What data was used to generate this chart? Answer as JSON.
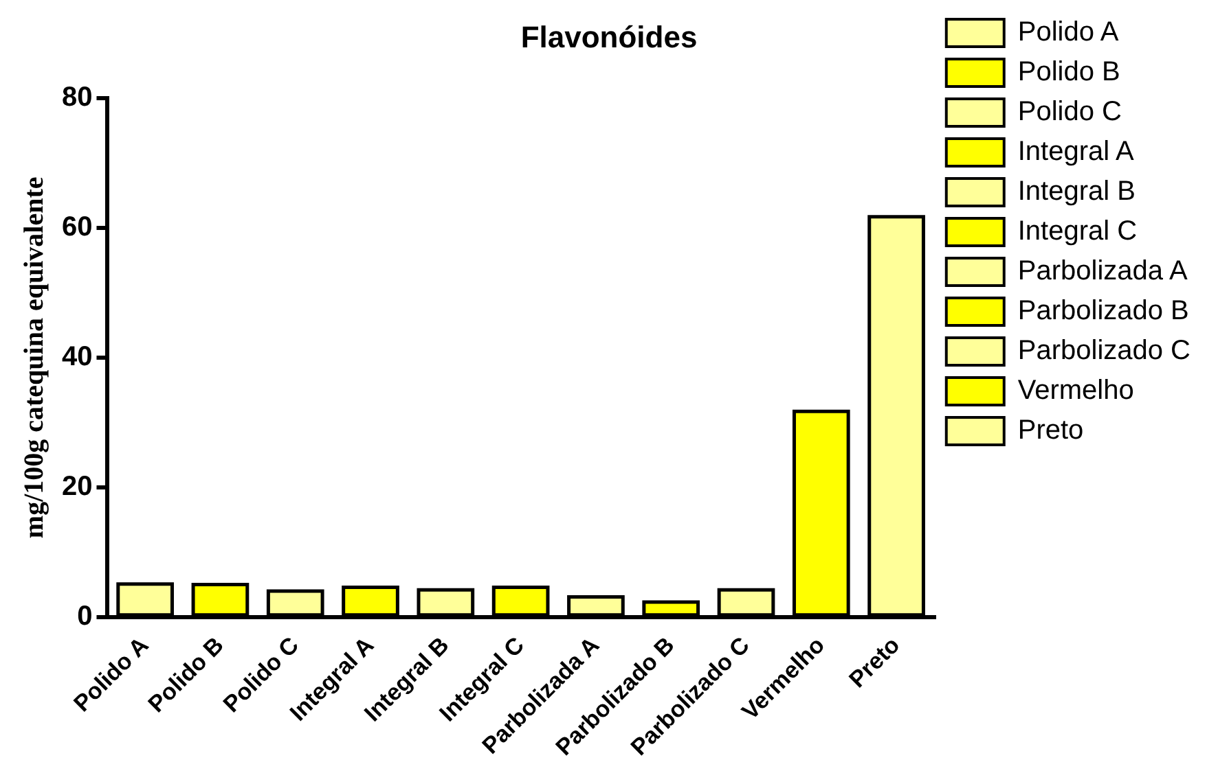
{
  "chart_data": {
    "type": "bar",
    "title": "Flavonóides",
    "ylabel": "mg/100g catequina equivalente",
    "categories": [
      "Polido A",
      "Polido B",
      "Polido C",
      "Integral A",
      "Integral B",
      "Integral C",
      "Parbolizada A",
      "Parbolizado B",
      "Parbolizado C",
      "Vermelho",
      "Preto"
    ],
    "series": [
      {
        "name": "Polido A",
        "color": "#ffff99",
        "values": [
          5.1,
          null,
          null,
          null,
          null,
          null,
          null,
          null,
          null,
          null,
          null
        ]
      },
      {
        "name": "Polido B",
        "color": "#ffff00",
        "values": [
          null,
          5.0,
          null,
          null,
          null,
          null,
          null,
          null,
          null,
          null,
          null
        ]
      },
      {
        "name": "Polido C",
        "color": "#ffff99",
        "values": [
          null,
          null,
          4.0,
          null,
          null,
          null,
          null,
          null,
          null,
          null,
          null
        ]
      },
      {
        "name": "Integral A",
        "color": "#ffff00",
        "values": [
          null,
          null,
          null,
          4.6,
          null,
          null,
          null,
          null,
          null,
          null,
          null
        ]
      },
      {
        "name": "Integral B",
        "color": "#ffff99",
        "values": [
          null,
          null,
          null,
          null,
          4.2,
          null,
          null,
          null,
          null,
          null,
          null
        ]
      },
      {
        "name": "Integral C",
        "color": "#ffff00",
        "values": [
          null,
          null,
          null,
          null,
          null,
          4.6,
          null,
          null,
          null,
          null,
          null
        ]
      },
      {
        "name": "Parbolizada A",
        "color": "#ffff99",
        "values": [
          null,
          null,
          null,
          null,
          null,
          null,
          3.1,
          null,
          null,
          null,
          null
        ]
      },
      {
        "name": "Parbolizado B",
        "color": "#ffff00",
        "values": [
          null,
          null,
          null,
          null,
          null,
          null,
          null,
          2.3,
          null,
          null,
          null
        ]
      },
      {
        "name": "Parbolizado C",
        "color": "#ffff99",
        "values": [
          null,
          null,
          null,
          null,
          null,
          null,
          null,
          null,
          4.2,
          null,
          null
        ]
      },
      {
        "name": "Vermelho",
        "color": "#ffff00",
        "values": [
          null,
          null,
          null,
          null,
          null,
          null,
          null,
          null,
          null,
          31.7,
          null
        ]
      },
      {
        "name": "Preto",
        "color": "#ffff99",
        "values": [
          null,
          null,
          null,
          null,
          null,
          null,
          null,
          null,
          null,
          null,
          61.7
        ]
      }
    ],
    "ylim": [
      0,
      80
    ],
    "yticks": [
      0,
      20,
      40,
      60,
      80
    ],
    "grid": false,
    "legend": "right"
  }
}
